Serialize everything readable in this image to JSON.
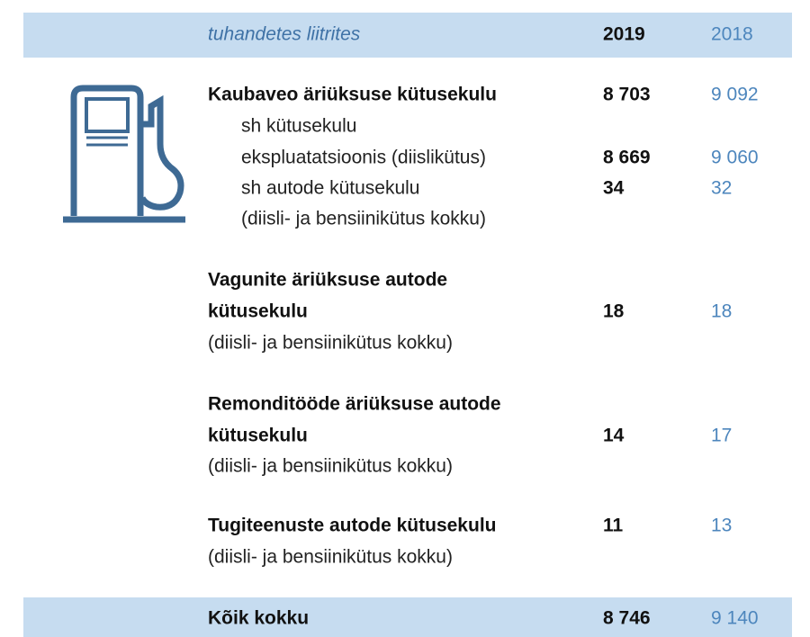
{
  "table": {
    "header": [
      "tuhandetes liitrites",
      "2019",
      "2018"
    ],
    "rows": [
      {
        "label": [
          "Kaubaveo äriüksuse kütusekulu"
        ],
        "values": [
          "8 703",
          "9 092"
        ]
      },
      {
        "label": [
          "sh kütusekulu",
          "ekspluatatsioonis (diislikütus)"
        ],
        "values": [
          "8 669",
          "9 060"
        ]
      },
      {
        "label": [
          "sh autode kütusekulu",
          "(diisli- ja bensiinikütus kokku)"
        ],
        "values": [
          "34",
          "32"
        ]
      },
      {
        "label": [
          "Vagunite äriüksuse autode",
          "kütusekulu"
        ],
        "note": "(diisli- ja bensiinikütus kokku)",
        "values": [
          "18",
          "18"
        ]
      },
      {
        "label": [
          "Remonditööde äriüksuse autode",
          "kütusekulu"
        ],
        "note": "(diisli- ja bensiinikütus kokku)",
        "values": [
          "14",
          "17"
        ]
      },
      {
        "label": [
          "Tugiteenuste autode kütusekulu"
        ],
        "note": "(diisli- ja bensiinikütus kokku)",
        "values": [
          "11",
          "13"
        ]
      }
    ],
    "total": {
      "label": "Kõik kokku",
      "values": [
        "8 746",
        "9 140"
      ]
    }
  }
}
